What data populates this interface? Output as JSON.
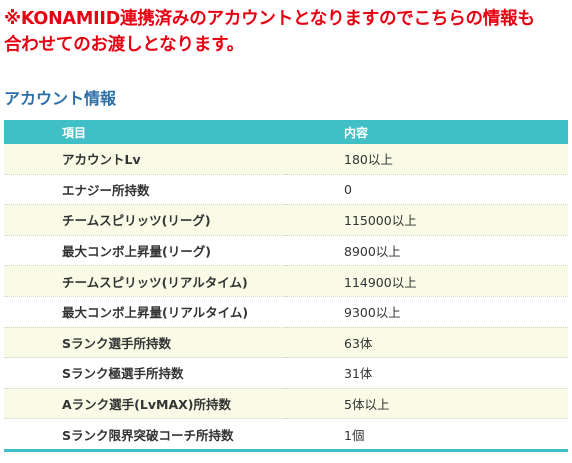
{
  "notice": {
    "line1": "※KONAMIID連携済みのアカウントとなりますのでこちらの情報も",
    "line2": "合わせてのお渡しとなります。"
  },
  "section_title": "アカウント情報",
  "table": {
    "headers": [
      "項目",
      "内容"
    ],
    "rows": [
      [
        "アカウントLv",
        "180以上"
      ],
      [
        "エナジー所持数",
        "0"
      ],
      [
        "チームスピリッツ(リーグ)",
        "115000以上"
      ],
      [
        "最大コンボ上昇量(リーグ)",
        "8900以上"
      ],
      [
        "チームスピリッツ(リアルタイム)",
        "114900以上"
      ],
      [
        "最大コンボ上昇量(リアルタイム)",
        "9300以上"
      ],
      [
        "Sランク選手所持数",
        "63体"
      ],
      [
        "Sランク極選手所持数",
        "31体"
      ],
      [
        "Aランク選手(LvMAX)所持数",
        "5体以上"
      ],
      [
        "Sランク限界突破コーチ所持数",
        "1個"
      ]
    ]
  },
  "colors": {
    "notice": "#e60012",
    "title": "#2f6fa8",
    "header_bg": "#40c0c6",
    "odd_row_bg": "#fafbe6"
  }
}
